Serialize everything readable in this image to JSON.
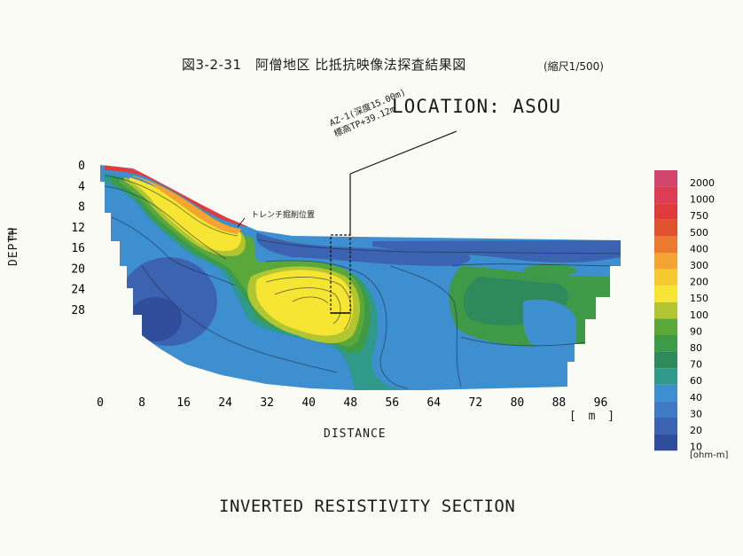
{
  "header": {
    "title": "図3-2-31　阿僧地区 比抵抗映像法探査結果図",
    "scale": "(縮尺1/500)",
    "location": "LOCATION: ASOU"
  },
  "footer": {
    "title": "INVERTED RESISTIVITY SECTION"
  },
  "annotations": {
    "borehole_line1": "AZ-1(深度15.00m)",
    "borehole_line2": "標高TP+39.12m",
    "trench": "トレンチ掘削位置"
  },
  "colors": {
    "deep_blue": "#3a5fa8",
    "blue": "#3d83c9",
    "teal": "#3c9c8a",
    "green": "#4aa65a",
    "olive": "#9bbd3d",
    "yellow": "#f2e13a",
    "orange": "#f0a030",
    "red": "#d73a2f",
    "magenta": "#c43a5e"
  },
  "chart_data": {
    "type": "heatmap",
    "title": "INVERTED RESISTIVITY SECTION",
    "xlabel": "DISTANCE",
    "x_unit": "[ m ]",
    "ylabel": "DEPTH",
    "y_unit": "(m)",
    "xlim": [
      0,
      100
    ],
    "ylim": [
      0,
      28
    ],
    "x_ticks": [
      "0",
      "8",
      "16",
      "24",
      "32",
      "40",
      "48",
      "56",
      "64",
      "72",
      "80",
      "88",
      "96"
    ],
    "y_ticks": [
      "0",
      "4",
      "8",
      "12",
      "16",
      "20",
      "24",
      "28"
    ],
    "colorbar": {
      "unit": "[ohm-m]",
      "levels": [
        {
          "value": "2000",
          "color": "#d2466b"
        },
        {
          "value": "1000",
          "color": "#dc3d55"
        },
        {
          "value": "750",
          "color": "#df3b3b"
        },
        {
          "value": "500",
          "color": "#e0512e"
        },
        {
          "value": "400",
          "color": "#eb7a2e"
        },
        {
          "value": "300",
          "color": "#f3a431"
        },
        {
          "value": "200",
          "color": "#f6c92f"
        },
        {
          "value": "150",
          "color": "#f7e533"
        },
        {
          "value": "100",
          "color": "#b2c631"
        },
        {
          "value": "90",
          "color": "#5aa83a"
        },
        {
          "value": "80",
          "color": "#3f9a48"
        },
        {
          "value": "70",
          "color": "#2e8a5a"
        },
        {
          "value": "60",
          "color": "#2f9a8a"
        },
        {
          "value": "40",
          "color": "#3d8fd0"
        },
        {
          "value": "30",
          "color": "#3f7ac4"
        },
        {
          "value": "20",
          "color": "#3c62b2"
        },
        {
          "value": "10",
          "color": "#2f4d9b"
        }
      ]
    }
  }
}
